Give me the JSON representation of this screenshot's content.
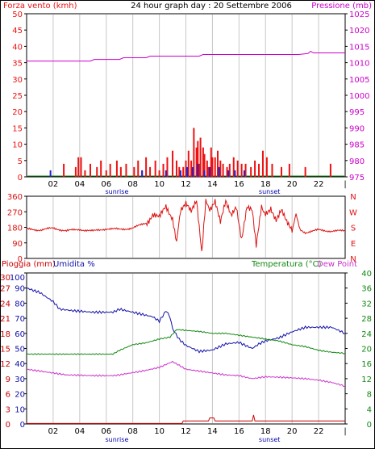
{
  "title": "24 hour graph day : 20 Settembre 2006",
  "colors": {
    "wind": "#ee1111",
    "gust": "#2222cc",
    "pressure": "#cc00cc",
    "direction": "#dd1111",
    "humidity": "#1111aa",
    "temperature": "#118811",
    "dewpoint": "#cc33cc",
    "rain": "#cc0000",
    "grid": "#c8c8c8",
    "sun": "#0000aa"
  },
  "x_ticks": [
    "02",
    "04",
    "06",
    "08",
    "10",
    "12",
    "14",
    "16",
    "18",
    "20",
    "22"
  ],
  "end_tick": "|",
  "sunrise_label": "sunrise",
  "sunset_label": "sunset",
  "chart_data": [
    {
      "type": "bar",
      "title": "24 hour graph day : 20 Settembre 2006",
      "left_axis_label": "Forza vento (kmh)",
      "right_axis_label": "Pressione (mb)",
      "left_ylim": [
        0,
        50
      ],
      "left_ticks": [
        0,
        5,
        10,
        15,
        20,
        25,
        30,
        35,
        40,
        45,
        50
      ],
      "right_ylim": [
        975,
        1025
      ],
      "right_ticks": [
        975,
        980,
        985,
        990,
        995,
        1000,
        1005,
        1010,
        1015,
        1020,
        1025
      ],
      "wind_bars": [
        [
          2.8,
          4
        ],
        [
          3.7,
          3
        ],
        [
          3.9,
          6
        ],
        [
          4.1,
          6
        ],
        [
          4.4,
          2
        ],
        [
          4.8,
          4
        ],
        [
          5.3,
          3
        ],
        [
          5.6,
          5
        ],
        [
          6.0,
          2
        ],
        [
          6.3,
          4
        ],
        [
          6.8,
          5
        ],
        [
          7.1,
          3
        ],
        [
          7.5,
          4
        ],
        [
          8.1,
          3
        ],
        [
          8.4,
          5
        ],
        [
          8.7,
          2
        ],
        [
          9.0,
          6
        ],
        [
          9.3,
          3
        ],
        [
          9.7,
          5
        ],
        [
          10.0,
          2
        ],
        [
          10.3,
          4
        ],
        [
          10.6,
          6
        ],
        [
          11.0,
          8
        ],
        [
          11.3,
          5
        ],
        [
          11.5,
          3
        ],
        [
          11.8,
          3
        ],
        [
          12.0,
          5
        ],
        [
          12.2,
          8
        ],
        [
          12.4,
          5
        ],
        [
          12.6,
          15
        ],
        [
          12.8,
          9
        ],
        [
          12.9,
          11
        ],
        [
          13.0,
          4
        ],
        [
          13.1,
          12
        ],
        [
          13.3,
          9
        ],
        [
          13.4,
          7
        ],
        [
          13.6,
          5
        ],
        [
          13.7,
          3
        ],
        [
          13.9,
          9
        ],
        [
          14.0,
          6
        ],
        [
          14.2,
          6
        ],
        [
          14.4,
          8
        ],
        [
          14.6,
          5
        ],
        [
          14.8,
          4
        ],
        [
          15.1,
          3
        ],
        [
          15.3,
          4
        ],
        [
          15.6,
          6
        ],
        [
          15.9,
          5
        ],
        [
          16.2,
          4
        ],
        [
          16.5,
          4
        ],
        [
          16.9,
          3
        ],
        [
          17.2,
          5
        ],
        [
          17.5,
          4
        ],
        [
          17.8,
          8
        ],
        [
          18.1,
          6
        ],
        [
          18.5,
          4
        ],
        [
          19.2,
          3
        ],
        [
          19.8,
          4
        ],
        [
          21.0,
          3
        ],
        [
          22.9,
          4
        ]
      ],
      "gust_bars": [
        [
          1.8,
          2
        ],
        [
          8.7,
          2
        ],
        [
          10.5,
          2
        ],
        [
          11.6,
          2
        ],
        [
          12.1,
          3
        ],
        [
          12.5,
          3
        ],
        [
          12.9,
          4
        ],
        [
          13.4,
          2
        ],
        [
          13.8,
          3
        ],
        [
          14.5,
          3
        ],
        [
          15.2,
          2
        ],
        [
          15.7,
          2
        ],
        [
          16.4,
          2
        ]
      ],
      "pressure": [
        [
          0,
          1010.5
        ],
        [
          4.8,
          1010.5
        ],
        [
          5.1,
          1011.0
        ],
        [
          7.0,
          1011.0
        ],
        [
          7.3,
          1011.5
        ],
        [
          9.0,
          1011.5
        ],
        [
          9.3,
          1012.0
        ],
        [
          13.0,
          1012.0
        ],
        [
          13.3,
          1012.5
        ],
        [
          20.5,
          1012.5
        ],
        [
          21.2,
          1012.8
        ],
        [
          21.4,
          1013.5
        ],
        [
          21.6,
          1013.0
        ],
        [
          24,
          1013.0
        ]
      ]
    },
    {
      "type": "line",
      "ylim": [
        0,
        360
      ],
      "left_ticks": [
        0,
        90,
        180,
        270,
        360
      ],
      "right_labels": [
        "N",
        "W",
        "S",
        "E",
        "N"
      ],
      "direction": [
        [
          0,
          170
        ],
        [
          1.0,
          165
        ],
        [
          2.0,
          175
        ],
        [
          3.0,
          160
        ],
        [
          4.0,
          168
        ],
        [
          5.0,
          158
        ],
        [
          6.0,
          172
        ],
        [
          7.0,
          168
        ],
        [
          8.0,
          176
        ],
        [
          9.0,
          205
        ],
        [
          9.5,
          260
        ],
        [
          10.0,
          230
        ],
        [
          10.5,
          300
        ],
        [
          11.0,
          240
        ],
        [
          11.3,
          80
        ],
        [
          11.6,
          280
        ],
        [
          12.0,
          310
        ],
        [
          12.4,
          260
        ],
        [
          12.8,
          330
        ],
        [
          13.2,
          40
        ],
        [
          13.5,
          320
        ],
        [
          13.8,
          290
        ],
        [
          14.2,
          330
        ],
        [
          14.6,
          200
        ],
        [
          15.0,
          320
        ],
        [
          15.4,
          250
        ],
        [
          15.8,
          310
        ],
        [
          16.2,
          120
        ],
        [
          16.6,
          300
        ],
        [
          17.0,
          270
        ],
        [
          17.3,
          90
        ],
        [
          17.7,
          310
        ],
        [
          18.0,
          260
        ],
        [
          18.4,
          300
        ],
        [
          18.8,
          230
        ],
        [
          19.2,
          280
        ],
        [
          19.6,
          200
        ],
        [
          20.0,
          150
        ],
        [
          20.3,
          260
        ],
        [
          20.6,
          170
        ],
        [
          21.0,
          150
        ],
        [
          22.0,
          165
        ],
        [
          23.0,
          158
        ],
        [
          24.0,
          160
        ]
      ]
    },
    {
      "type": "line",
      "left_axis_labels": [
        "Pioggia (mm)",
        "Umidita %"
      ],
      "right_axis_labels": [
        "Temperatura (°C)",
        "Dew Point"
      ],
      "rain_ticks": [
        0,
        3,
        6,
        9,
        12,
        15,
        18,
        21,
        24,
        27,
        30
      ],
      "humidity_ticks": [
        0,
        10,
        20,
        30,
        40,
        50,
        60,
        70,
        80,
        90,
        100
      ],
      "temp_ticks": [
        0,
        4,
        8,
        12,
        16,
        20,
        24,
        28,
        32,
        36,
        40
      ],
      "rain_ylim": [
        0,
        30
      ],
      "humidity_ylim": [
        0,
        100
      ],
      "temp_ylim": [
        0,
        40
      ],
      "humidity": [
        [
          0,
          90
        ],
        [
          1.0,
          87
        ],
        [
          2.0,
          81
        ],
        [
          2.5,
          76
        ],
        [
          3.5,
          75
        ],
        [
          5.0,
          74
        ],
        [
          6.5,
          74
        ],
        [
          7.0,
          76
        ],
        [
          8.5,
          73
        ],
        [
          9.5,
          71
        ],
        [
          10.0,
          68
        ],
        [
          10.5,
          75
        ],
        [
          10.8,
          71
        ],
        [
          11.0,
          63
        ],
        [
          11.5,
          56
        ],
        [
          12.0,
          52
        ],
        [
          13.0,
          48
        ],
        [
          14.0,
          49
        ],
        [
          15.0,
          53
        ],
        [
          16.0,
          54
        ],
        [
          17.0,
          50
        ],
        [
          17.5,
          53
        ],
        [
          18.0,
          55
        ],
        [
          19.0,
          57
        ],
        [
          20.0,
          61
        ],
        [
          21.0,
          64
        ],
        [
          22.0,
          64
        ],
        [
          23.0,
          64
        ],
        [
          24.0,
          60
        ]
      ],
      "temperature": [
        [
          0,
          18.5
        ],
        [
          1.0,
          18.5
        ],
        [
          2.0,
          18.5
        ],
        [
          3.0,
          18.5
        ],
        [
          4.0,
          18.5
        ],
        [
          5.0,
          18.5
        ],
        [
          6.5,
          18.5
        ],
        [
          7.0,
          19.5
        ],
        [
          8.0,
          21.0
        ],
        [
          9.0,
          21.5
        ],
        [
          10.0,
          22.5
        ],
        [
          10.8,
          23.0
        ],
        [
          11.3,
          25.0
        ],
        [
          12.0,
          24.8
        ],
        [
          13.0,
          24.5
        ],
        [
          14.0,
          24.0
        ],
        [
          15.0,
          24.0
        ],
        [
          16.0,
          23.5
        ],
        [
          17.0,
          23.0
        ],
        [
          18.0,
          22.5
        ],
        [
          19.0,
          22.0
        ],
        [
          20.0,
          21.0
        ],
        [
          21.0,
          20.5
        ],
        [
          22.0,
          19.5
        ],
        [
          23.0,
          19.0
        ],
        [
          24.0,
          18.7
        ]
      ],
      "dewpoint": [
        [
          0,
          14.5
        ],
        [
          1.0,
          14.0
        ],
        [
          2.0,
          13.5
        ],
        [
          3.0,
          13.0
        ],
        [
          5.0,
          12.8
        ],
        [
          6.5,
          12.8
        ],
        [
          7.0,
          13.0
        ],
        [
          8.0,
          13.6
        ],
        [
          9.0,
          14.2
        ],
        [
          10.0,
          15.0
        ],
        [
          11.0,
          16.5
        ],
        [
          11.5,
          15.5
        ],
        [
          12.0,
          14.5
        ],
        [
          13.0,
          14.0
        ],
        [
          14.0,
          13.5
        ],
        [
          15.0,
          13.0
        ],
        [
          16.0,
          12.8
        ],
        [
          17.0,
          12.0
        ],
        [
          18.0,
          12.5
        ],
        [
          19.0,
          12.4
        ],
        [
          20.0,
          12.2
        ],
        [
          21.0,
          12.0
        ],
        [
          22.0,
          11.6
        ],
        [
          23.0,
          11.0
        ],
        [
          24.0,
          10.0
        ]
      ],
      "rain": [
        [
          0,
          0.1
        ],
        [
          11.7,
          0.1
        ],
        [
          11.8,
          0.6
        ],
        [
          13.7,
          0.6
        ],
        [
          13.8,
          1.2
        ],
        [
          14.1,
          1.2
        ],
        [
          14.2,
          0.6
        ],
        [
          17.0,
          0.6
        ],
        [
          17.1,
          1.8
        ],
        [
          17.2,
          0.6
        ],
        [
          24.0,
          0.6
        ]
      ]
    }
  ]
}
